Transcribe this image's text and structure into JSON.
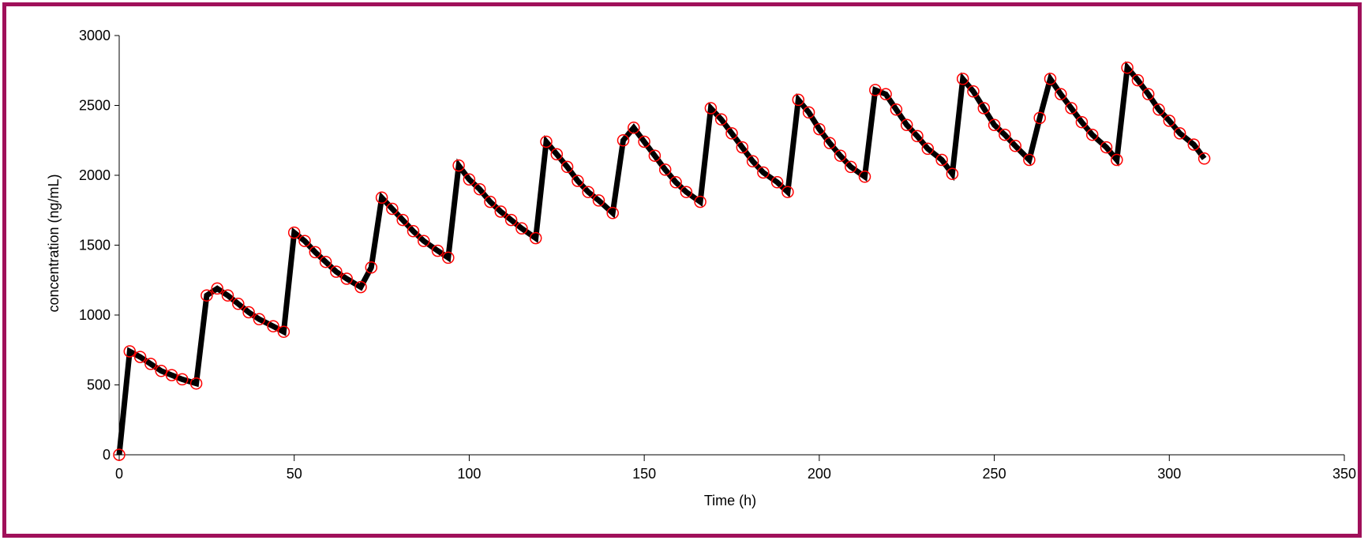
{
  "chart_data": {
    "type": "line",
    "title": "",
    "xlabel": "Time (h)",
    "ylabel": "concentration (ng/mL)",
    "xlim": [
      0,
      350
    ],
    "ylim": [
      0,
      3000
    ],
    "x_ticks": [
      0,
      50,
      100,
      150,
      200,
      250,
      300,
      350
    ],
    "y_ticks": [
      0,
      500,
      1000,
      1500,
      2000,
      2500,
      3000
    ],
    "grid": false,
    "legend": "none",
    "series": [
      {
        "style": "line",
        "color": "#000000",
        "x": [
          0,
          3,
          6,
          9,
          12,
          15,
          18,
          22,
          25,
          28,
          31,
          34,
          37,
          40,
          44,
          47,
          50,
          53,
          56,
          59,
          62,
          65,
          69,
          72,
          75,
          78,
          81,
          84,
          87,
          91,
          94,
          97,
          100,
          103,
          106,
          109,
          112,
          115,
          119,
          122,
          125,
          128,
          131,
          134,
          137,
          141,
          144,
          147,
          150,
          153,
          156,
          159,
          162,
          166,
          169,
          172,
          175,
          178,
          181,
          184,
          188,
          191,
          194,
          197,
          200,
          203,
          206,
          209,
          213,
          216,
          219,
          222,
          225,
          228,
          231,
          235,
          238,
          241,
          244,
          247,
          250,
          253,
          256,
          260,
          263,
          266,
          269,
          272,
          275,
          278,
          282,
          285,
          288,
          291,
          294,
          297,
          300,
          303,
          307,
          310
        ],
        "y": [
          0,
          740,
          700,
          650,
          600,
          570,
          540,
          510,
          1140,
          1190,
          1140,
          1080,
          1020,
          970,
          920,
          880,
          1590,
          1530,
          1450,
          1380,
          1310,
          1260,
          1200,
          1340,
          1840,
          1760,
          1680,
          1600,
          1530,
          1460,
          1410,
          2070,
          1970,
          1900,
          1810,
          1740,
          1680,
          1620,
          1550,
          2240,
          2150,
          2060,
          1960,
          1880,
          1820,
          1730,
          2250,
          2340,
          2240,
          2140,
          2040,
          1950,
          1880,
          1810,
          2480,
          2400,
          2300,
          2200,
          2100,
          2020,
          1950,
          1880,
          2540,
          2450,
          2330,
          2230,
          2140,
          2060,
          1990,
          2610,
          2580,
          2470,
          2360,
          2280,
          2190,
          2110,
          2010,
          2690,
          2600,
          2480,
          2360,
          2290,
          2210,
          2110,
          2410,
          2690,
          2580,
          2480,
          2380,
          2290,
          2200,
          2110,
          2770,
          2680,
          2580,
          2470,
          2390,
          2300,
          2220,
          2120
        ]
      },
      {
        "style": "markers",
        "marker": "open-circle",
        "color": "#ff0000",
        "x": [
          0,
          3,
          6,
          9,
          12,
          15,
          18,
          22,
          25,
          28,
          31,
          34,
          37,
          40,
          44,
          47,
          50,
          53,
          56,
          59,
          62,
          65,
          69,
          72,
          75,
          78,
          81,
          84,
          87,
          91,
          94,
          97,
          100,
          103,
          106,
          109,
          112,
          115,
          119,
          122,
          125,
          128,
          131,
          134,
          137,
          141,
          144,
          147,
          150,
          153,
          156,
          159,
          162,
          166,
          169,
          172,
          175,
          178,
          181,
          184,
          188,
          191,
          194,
          197,
          200,
          203,
          206,
          209,
          213,
          216,
          219,
          222,
          225,
          228,
          231,
          235,
          238,
          241,
          244,
          247,
          250,
          253,
          256,
          260,
          263,
          266,
          269,
          272,
          275,
          278,
          282,
          285,
          288,
          291,
          294,
          297,
          300,
          303,
          307,
          310
        ],
        "y": [
          0,
          740,
          700,
          650,
          600,
          570,
          540,
          510,
          1140,
          1190,
          1140,
          1080,
          1020,
          970,
          920,
          880,
          1590,
          1530,
          1450,
          1380,
          1310,
          1260,
          1200,
          1340,
          1840,
          1760,
          1680,
          1600,
          1530,
          1460,
          1410,
          2070,
          1970,
          1900,
          1810,
          1740,
          1680,
          1620,
          1550,
          2240,
          2150,
          2060,
          1960,
          1880,
          1820,
          1730,
          2250,
          2340,
          2240,
          2140,
          2040,
          1950,
          1880,
          1810,
          2480,
          2400,
          2300,
          2200,
          2100,
          2020,
          1950,
          1880,
          2540,
          2450,
          2330,
          2230,
          2140,
          2060,
          1990,
          2610,
          2580,
          2470,
          2360,
          2280,
          2190,
          2110,
          2010,
          2690,
          2600,
          2480,
          2360,
          2290,
          2210,
          2110,
          2410,
          2690,
          2580,
          2480,
          2380,
          2290,
          2200,
          2110,
          2770,
          2680,
          2580,
          2470,
          2390,
          2300,
          2220,
          2120
        ]
      }
    ]
  }
}
